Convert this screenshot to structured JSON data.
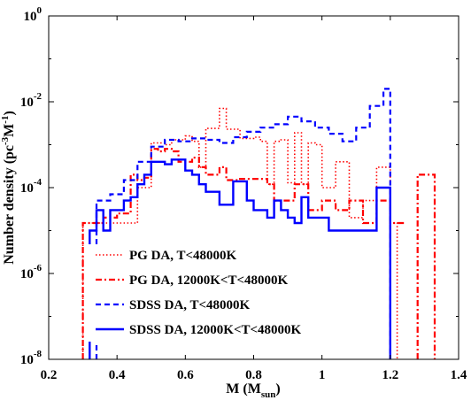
{
  "chart_data": {
    "type": "line",
    "step": true,
    "ylog": true,
    "xlim": [
      0.2,
      1.4
    ],
    "ylim": [
      1e-08,
      1
    ],
    "xticks": [
      0.2,
      0.4,
      0.6,
      0.8,
      1.0,
      1.2,
      1.4
    ],
    "xtick_labels": [
      "0.2",
      "0.4",
      "0.6",
      "0.8",
      "1",
      "1.2",
      "1.4"
    ],
    "ytick_labels": [
      {
        "base": "10",
        "exp": "0"
      },
      {
        "base": "10",
        "exp": "-2"
      },
      {
        "base": "10",
        "exp": "-4"
      },
      {
        "base": "10",
        "exp": "-6"
      },
      {
        "base": "10",
        "exp": "-8"
      }
    ],
    "xlabel": {
      "main": "M (M",
      "sub": "sun",
      "tail": ")"
    },
    "ylabel": {
      "main": "Number density (pc",
      "sup1": "-3",
      "mid": "M",
      "sup2": "-1",
      "tail": ")"
    },
    "legend_position": "bottom-left",
    "series": [
      {
        "name": "PG DA, T<48000K",
        "color": "#ff0000",
        "dash": "dotted",
        "bins": [
          [
            0.3,
            0.34,
            1.5e-05
          ],
          [
            0.34,
            0.38,
            1.5e-05
          ],
          [
            0.38,
            0.42,
            1.5e-05
          ],
          [
            0.42,
            0.46,
            1.5e-05
          ],
          [
            0.46,
            0.48,
            0.0001
          ],
          [
            0.48,
            0.5,
            0.0001
          ],
          [
            0.5,
            0.52,
            0.0011
          ],
          [
            0.52,
            0.54,
            0.0011
          ],
          [
            0.54,
            0.56,
            0.001
          ],
          [
            0.56,
            0.58,
            0.0013
          ],
          [
            0.58,
            0.6,
            0.0013
          ],
          [
            0.6,
            0.62,
            0.0016
          ],
          [
            0.62,
            0.64,
            0.0012
          ],
          [
            0.64,
            0.66,
            0.0003
          ],
          [
            0.66,
            0.68,
            0.0024
          ],
          [
            0.68,
            0.7,
            0.0024
          ],
          [
            0.7,
            0.72,
            0.007
          ],
          [
            0.72,
            0.74,
            0.0023
          ],
          [
            0.74,
            0.76,
            0.0023
          ],
          [
            0.76,
            0.78,
            0.0014
          ],
          [
            0.78,
            0.8,
            0.0014
          ],
          [
            0.8,
            0.82,
            0.0015
          ],
          [
            0.82,
            0.84,
            0.0012
          ],
          [
            0.84,
            0.86,
            0.00012
          ],
          [
            0.86,
            0.88,
            0.0012
          ],
          [
            0.88,
            0.9,
            0.0013
          ],
          [
            0.9,
            0.92,
            0.00013
          ],
          [
            0.92,
            0.94,
            0.0019
          ],
          [
            0.94,
            0.96,
            0.00012
          ],
          [
            0.96,
            0.98,
            0.0011
          ],
          [
            0.98,
            1.0,
            0.001
          ],
          [
            1.0,
            1.02,
            0.0001
          ],
          [
            1.02,
            1.04,
            0.0001
          ],
          [
            1.04,
            1.06,
            0.0004
          ],
          [
            1.06,
            1.08,
            0.0004
          ],
          [
            1.08,
            1.1,
            2e-05
          ],
          [
            1.1,
            1.12,
            2e-05
          ],
          [
            1.12,
            1.14,
            5e-05
          ],
          [
            1.14,
            1.16,
            5e-05
          ],
          [
            1.16,
            1.18,
            0.0003
          ],
          [
            1.18,
            1.2,
            0.0003
          ],
          [
            1.2,
            1.22,
            1.5e-05
          ]
        ]
      },
      {
        "name": "PG DA, 12000K<T<48000K",
        "color": "#ff0000",
        "dash": "dashdot",
        "bins": [
          [
            0.3,
            0.34,
            1.5e-05
          ],
          [
            0.34,
            0.36,
            1.5e-05
          ],
          [
            0.36,
            0.38,
            2e-05
          ],
          [
            0.38,
            0.4,
            2e-05
          ],
          [
            0.4,
            0.44,
            2.5e-05
          ],
          [
            0.44,
            0.46,
            0.0002
          ],
          [
            0.46,
            0.48,
            0.00015
          ],
          [
            0.48,
            0.5,
            0.00017
          ],
          [
            0.5,
            0.52,
            0.0008
          ],
          [
            0.52,
            0.54,
            0.0007
          ],
          [
            0.54,
            0.56,
            0.0008
          ],
          [
            0.56,
            0.58,
            0.0007
          ],
          [
            0.58,
            0.6,
            0.0004
          ],
          [
            0.6,
            0.62,
            0.0004
          ],
          [
            0.62,
            0.64,
            0.0005
          ],
          [
            0.64,
            0.66,
            0.0003
          ],
          [
            0.66,
            0.68,
            0.0002
          ],
          [
            0.68,
            0.7,
            0.0002
          ],
          [
            0.7,
            0.72,
            0.0003
          ],
          [
            0.72,
            0.74,
            0.00015
          ],
          [
            0.74,
            0.76,
            0.00015
          ],
          [
            0.76,
            0.78,
            0.00016
          ],
          [
            0.78,
            0.8,
            0.00016
          ],
          [
            0.8,
            0.82,
            0.00016
          ],
          [
            0.82,
            0.84,
            0.00016
          ],
          [
            0.84,
            0.86,
            0.00012
          ],
          [
            0.86,
            0.88,
            5e-05
          ],
          [
            0.88,
            0.9,
            5e-05
          ],
          [
            0.9,
            0.92,
            5e-05
          ],
          [
            0.92,
            0.94,
            0.00012
          ],
          [
            0.94,
            0.96,
            0.00012
          ],
          [
            0.96,
            0.98,
            3e-05
          ],
          [
            0.98,
            1.0,
            3e-05
          ],
          [
            1.0,
            1.02,
            5e-05
          ],
          [
            1.02,
            1.04,
            5e-05
          ],
          [
            1.04,
            1.06,
            3e-05
          ],
          [
            1.06,
            1.08,
            3e-05
          ],
          [
            1.08,
            1.1,
            5e-05
          ],
          [
            1.1,
            1.12,
            5e-05
          ],
          [
            1.12,
            1.14,
            1.5e-05
          ],
          [
            1.14,
            1.16,
            1.5e-05
          ],
          [
            1.16,
            1.18,
            5e-05
          ],
          [
            1.18,
            1.2,
            5e-05
          ],
          [
            1.2,
            1.22,
            1.5e-05
          ],
          [
            1.22,
            1.24,
            1.5e-05
          ],
          [
            1.28,
            1.3,
            0.0002
          ],
          [
            1.3,
            1.33,
            0.0002
          ]
        ]
      },
      {
        "name": "SDSS DA, T<48000K",
        "color": "#0000ff",
        "dash": "dashed",
        "bins": [
          [
            0.34,
            0.36,
            5e-05
          ],
          [
            0.36,
            0.38,
            5e-05
          ],
          [
            0.38,
            0.4,
            7e-05
          ],
          [
            0.4,
            0.42,
            7e-05
          ],
          [
            0.42,
            0.44,
            0.00015
          ],
          [
            0.44,
            0.46,
            0.00015
          ],
          [
            0.46,
            0.48,
            0.0004
          ],
          [
            0.48,
            0.5,
            0.0004
          ],
          [
            0.5,
            0.52,
            0.0009
          ],
          [
            0.52,
            0.54,
            0.0009
          ],
          [
            0.54,
            0.56,
            0.0013
          ],
          [
            0.56,
            0.58,
            0.0013
          ],
          [
            0.58,
            0.6,
            0.0012
          ],
          [
            0.6,
            0.62,
            0.0012
          ],
          [
            0.62,
            0.64,
            0.0014
          ],
          [
            0.64,
            0.66,
            0.0014
          ],
          [
            0.66,
            0.68,
            0.0013
          ],
          [
            0.68,
            0.7,
            0.0013
          ],
          [
            0.7,
            0.72,
            0.0011
          ],
          [
            0.72,
            0.74,
            0.0011
          ],
          [
            0.74,
            0.76,
            0.0015
          ],
          [
            0.76,
            0.78,
            0.0015
          ],
          [
            0.78,
            0.8,
            0.002
          ],
          [
            0.8,
            0.82,
            0.002
          ],
          [
            0.82,
            0.84,
            0.0025
          ],
          [
            0.84,
            0.86,
            0.0025
          ],
          [
            0.86,
            0.88,
            0.003
          ],
          [
            0.88,
            0.9,
            0.003
          ],
          [
            0.9,
            0.92,
            0.0045
          ],
          [
            0.92,
            0.94,
            0.0045
          ],
          [
            0.94,
            0.96,
            0.0035
          ],
          [
            0.96,
            0.98,
            0.0035
          ],
          [
            0.98,
            1.0,
            0.0025
          ],
          [
            1.0,
            1.02,
            0.0025
          ],
          [
            1.02,
            1.04,
            0.0018
          ],
          [
            1.04,
            1.06,
            0.0018
          ],
          [
            1.06,
            1.08,
            0.0012
          ],
          [
            1.08,
            1.1,
            0.0012
          ],
          [
            1.1,
            1.12,
            0.0025
          ],
          [
            1.12,
            1.14,
            0.0025
          ],
          [
            1.14,
            1.16,
            0.008
          ],
          [
            1.16,
            1.18,
            0.008
          ],
          [
            1.18,
            1.2,
            0.02
          ]
        ]
      },
      {
        "name": "SDSS DA, 12000K<T<48000K",
        "color": "#0000ff",
        "dash": "solid",
        "bins": [
          [
            0.32,
            0.34,
            1e-05
          ],
          [
            0.34,
            0.36,
            3e-05
          ],
          [
            0.36,
            0.38,
            1e-05
          ],
          [
            0.38,
            0.4,
            3e-05
          ],
          [
            0.4,
            0.42,
            3e-05
          ],
          [
            0.42,
            0.44,
            5e-05
          ],
          [
            0.44,
            0.46,
            6e-05
          ],
          [
            0.46,
            0.48,
            0.00012
          ],
          [
            0.48,
            0.5,
            0.0002
          ],
          [
            0.5,
            0.52,
            0.0004
          ],
          [
            0.52,
            0.54,
            0.0004
          ],
          [
            0.54,
            0.56,
            0.00035
          ],
          [
            0.56,
            0.58,
            0.00045
          ],
          [
            0.58,
            0.6,
            0.00045
          ],
          [
            0.6,
            0.62,
            0.00025
          ],
          [
            0.62,
            0.64,
            0.0002
          ],
          [
            0.64,
            0.66,
            0.00012
          ],
          [
            0.66,
            0.68,
            8e-05
          ],
          [
            0.68,
            0.7,
            8e-05
          ],
          [
            0.7,
            0.72,
            4e-05
          ],
          [
            0.72,
            0.74,
            4e-05
          ],
          [
            0.74,
            0.76,
            0.00014
          ],
          [
            0.76,
            0.78,
            0.00014
          ],
          [
            0.78,
            0.8,
            5e-05
          ],
          [
            0.8,
            0.82,
            3e-05
          ],
          [
            0.82,
            0.84,
            3e-05
          ],
          [
            0.84,
            0.86,
            2e-05
          ],
          [
            0.86,
            0.88,
            5e-05
          ],
          [
            0.88,
            0.9,
            3e-05
          ],
          [
            0.9,
            0.92,
            2e-05
          ],
          [
            0.92,
            0.94,
            1.5e-05
          ],
          [
            0.94,
            0.96,
            6e-05
          ],
          [
            0.96,
            0.98,
            2e-05
          ],
          [
            0.98,
            1.0,
            2e-05
          ],
          [
            1.0,
            1.02,
            2e-05
          ],
          [
            1.02,
            1.04,
            1e-05
          ],
          [
            1.04,
            1.06,
            1e-05
          ],
          [
            1.06,
            1.08,
            1e-05
          ],
          [
            1.08,
            1.1,
            1e-05
          ],
          [
            1.1,
            1.12,
            1e-05
          ],
          [
            1.12,
            1.14,
            1e-05
          ],
          [
            1.14,
            1.16,
            1e-05
          ],
          [
            1.16,
            1.18,
            0.0001
          ],
          [
            1.18,
            1.2,
            0.0001
          ]
        ]
      }
    ]
  }
}
